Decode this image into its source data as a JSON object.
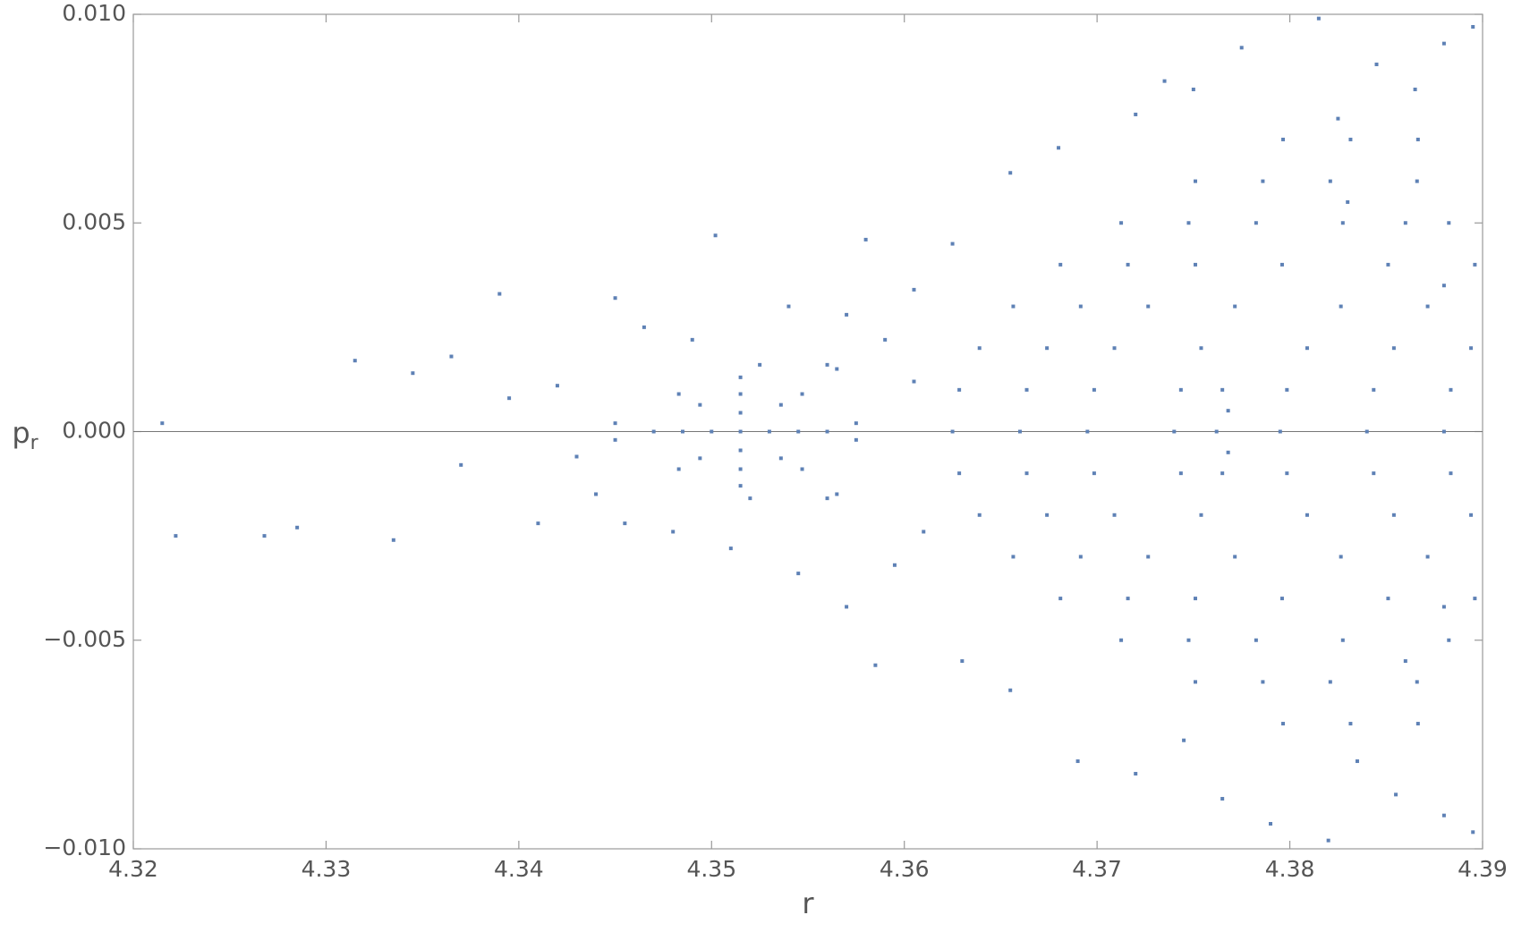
{
  "chart_data": {
    "type": "scatter",
    "xlabel": "r",
    "ylabel": "p",
    "ylabel_sub": "r",
    "color": "#5e81b5",
    "zero_line": true,
    "xlim": [
      4.32,
      4.39
    ],
    "xticks": [
      4.32,
      4.33,
      4.34,
      4.35,
      4.36,
      4.37,
      4.38,
      4.39
    ],
    "ylim": [
      -0.01,
      0.01
    ],
    "yticks": [
      {
        "value": -0.01,
        "label": "−0.010"
      },
      {
        "value": -0.005,
        "label": "−0.005"
      },
      {
        "value": 0,
        "label": "0.000"
      },
      {
        "value": 0.005,
        "label": "0.005"
      },
      {
        "value": 0.01,
        "label": "0.010"
      }
    ],
    "x": [
      4.356,
      4.3547,
      4.3515,
      4.3483,
      4.347,
      4.3483,
      4.3515,
      4.3547,
      4.3545,
      4.3536,
      4.3515,
      4.3494,
      4.3485,
      4.3494,
      4.3515,
      4.3536,
      4.353,
      4.3515,
      4.35,
      4.3515,
      4.3515,
      4.345,
      4.345,
      4.3575,
      4.3575,
      4.356,
      4.3565,
      4.356,
      4.3565,
      4.3525,
      4.352,
      4.345,
      4.3465,
      4.349,
      4.3502,
      4.354,
      4.357,
      4.359,
      4.3605,
      4.342,
      4.343,
      4.344,
      4.3455,
      4.348,
      4.351,
      4.3545,
      4.357,
      4.3595,
      4.361,
      4.3605,
      4.358,
      4.3625,
      4.363,
      4.3585,
      4.337,
      4.3345,
      4.3315,
      4.3285,
      4.3268,
      4.3222,
      4.3215,
      4.3335,
      4.339,
      4.341,
      4.3365,
      4.3395,
      4.3655,
      4.368,
      4.372,
      4.375,
      4.3775,
      4.3815,
      4.3845,
      4.388,
      4.3865,
      4.3825,
      4.3895,
      4.3735,
      4.3655,
      4.369,
      4.372,
      4.3765,
      4.379,
      4.382,
      4.3855,
      4.388,
      4.3895,
      4.3745,
      4.3835,
      4.386,
      4.388,
      4.383,
      4.388,
      4.386,
      4.3765,
      4.3765,
      4.3762,
      4.3768,
      4.3768,
      4.3625,
      4.36285,
      4.36285,
      4.3639,
      4.3639,
      4.36565,
      4.36565,
      4.3681,
      4.3681,
      4.37125,
      4.37125,
      4.3751,
      4.3751,
      4.37965,
      4.37965,
      4.366,
      4.36635,
      4.36635,
      4.3674,
      4.3674,
      4.36915,
      4.36915,
      4.3716,
      4.3716,
      4.37475,
      4.37475,
      4.3786,
      4.3786,
      4.38315,
      4.38315,
      4.3695,
      4.36985,
      4.36985,
      4.3709,
      4.3709,
      4.37265,
      4.37265,
      4.3751,
      4.3751,
      4.37825,
      4.37825,
      4.3821,
      4.3821,
      4.38665,
      4.38665,
      4.374,
      4.37435,
      4.37435,
      4.3754,
      4.3754,
      4.37715,
      4.37715,
      4.3796,
      4.3796,
      4.38275,
      4.38275,
      4.3866,
      4.3866,
      4.3795,
      4.37985,
      4.37985,
      4.3809,
      4.3809,
      4.38265,
      4.38265,
      4.3851,
      4.3851,
      4.38825,
      4.38825,
      4.384,
      4.38435,
      4.38435,
      4.3854,
      4.3854,
      4.38715,
      4.38715,
      4.3896,
      4.3896,
      4.388,
      4.38835,
      4.38835,
      4.3894,
      4.3894
    ],
    "values": [
      0,
      0.0009,
      0.0013,
      0.0009,
      0,
      -0.0009,
      -0.0013,
      -0.0009,
      0,
      0.00064,
      0.0009,
      0.00064,
      0,
      -0.00064,
      -0.0009,
      -0.00064,
      0,
      0.00045,
      0,
      -0.00045,
      0,
      0.0002,
      -0.0002,
      0.0002,
      -0.0002,
      0.0016,
      0.0015,
      -0.0016,
      -0.0015,
      0.0016,
      -0.0016,
      0.0032,
      0.0025,
      0.0022,
      0.0047,
      0.003,
      0.0028,
      0.0022,
      0.0012,
      0.0011,
      -0.0006,
      -0.0015,
      -0.0022,
      -0.0024,
      -0.0028,
      -0.0034,
      -0.0042,
      -0.0032,
      -0.0024,
      0.0034,
      0.0046,
      0.0045,
      -0.0055,
      -0.0056,
      -0.0008,
      0.0014,
      0.0017,
      -0.0023,
      -0.0025,
      -0.0025,
      0.0002,
      -0.0026,
      0.0033,
      -0.0022,
      0.0018,
      0.0008,
      0.0062,
      0.0068,
      0.0076,
      0.0082,
      0.0092,
      0.0099,
      0.0088,
      0.0093,
      0.0082,
      0.0075,
      0.0097,
      0.0084,
      -0.0062,
      -0.0079,
      -0.0082,
      -0.0088,
      -0.0094,
      -0.0098,
      -0.0087,
      -0.0092,
      -0.0096,
      -0.0074,
      -0.0079,
      0.005,
      0.0035,
      0.0055,
      -0.0042,
      -0.0055,
      0.001,
      -0.001,
      0,
      0.0005,
      -0.0005,
      0,
      0.001,
      -0.001,
      0.002,
      -0.002,
      0.003,
      -0.003,
      0.004,
      -0.004,
      0.005,
      -0.005,
      0.006,
      -0.006,
      0.007,
      -0.007,
      0,
      0.001,
      -0.001,
      0.002,
      -0.002,
      0.003,
      -0.003,
      0.004,
      -0.004,
      0.005,
      -0.005,
      0.006,
      -0.006,
      0.007,
      -0.007,
      0,
      0.001,
      -0.001,
      0.002,
      -0.002,
      0.003,
      -0.003,
      0.004,
      -0.004,
      0.005,
      -0.005,
      0.006,
      -0.006,
      0.007,
      -0.007,
      0,
      0.001,
      -0.001,
      0.002,
      -0.002,
      0.003,
      -0.003,
      0.004,
      -0.004,
      0.005,
      -0.005,
      0.006,
      -0.006,
      0,
      0.001,
      -0.001,
      0.002,
      -0.002,
      0.003,
      -0.003,
      0.004,
      -0.004,
      0.005,
      -0.005,
      0,
      0.001,
      -0.001,
      0.002,
      -0.002,
      0.003,
      -0.003,
      0.004,
      -0.004,
      0,
      0.001,
      -0.001,
      0.002,
      -0.002
    ]
  }
}
